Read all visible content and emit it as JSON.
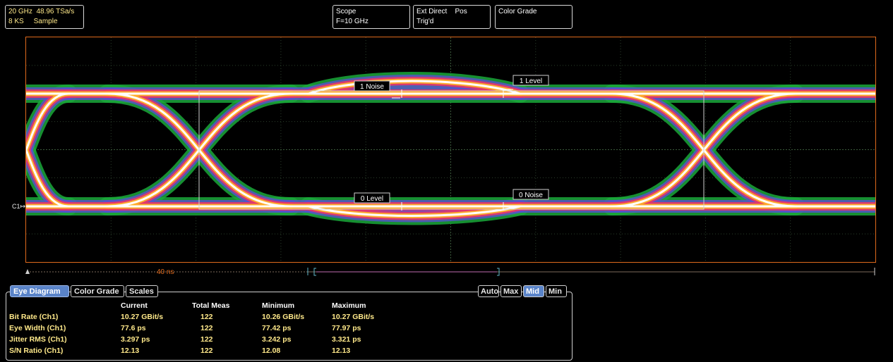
{
  "acquisition": {
    "bandwidth": "20 GHz",
    "sample_rate": "48.96 TSa/s",
    "record_length": "8 KS",
    "mode": "Sample"
  },
  "scope_box": {
    "title": "Scope",
    "filter": "F=10 GHz"
  },
  "trigger_box": {
    "source": "Ext Direct",
    "slope": "Pos",
    "status": "Trig'd"
  },
  "display_box": {
    "mode": "Color Grade"
  },
  "markers": {
    "noise1": "1 Noise",
    "level1": "1 Level",
    "level0": "0 Level",
    "noise0": "0 Noise"
  },
  "channel_label": "C1",
  "timebase": {
    "label": "40 ns"
  },
  "tabs": [
    {
      "label": "Eye Diagram",
      "active": true
    },
    {
      "label": "Color Grade",
      "active": false
    },
    {
      "label": "Scales",
      "active": false
    }
  ],
  "scale_modes": [
    {
      "label": "Auto",
      "active": false
    },
    {
      "label": "Max",
      "active": false
    },
    {
      "label": "Mid",
      "active": true
    },
    {
      "label": "Min",
      "active": false
    }
  ],
  "measurements": {
    "headers": [
      "",
      "Current",
      "Total Meas",
      "Minimum",
      "Maximum"
    ],
    "rows": [
      {
        "name": "Bit Rate (Ch1)",
        "current": "10.27 GBit/s",
        "total": "122",
        "min": "10.26 GBit/s",
        "max": "10.27 GBit/s"
      },
      {
        "name": "Eye Width (Ch1)",
        "current": "77.6 ps",
        "total": "122",
        "min": "77.42 ps",
        "max": "77.97 ps"
      },
      {
        "name": "Jitter RMS (Ch1)",
        "current": "3.297 ps",
        "total": "122",
        "min": "3.242 ps",
        "max": "3.321 ps"
      },
      {
        "name": "S/N Ratio (Ch1)",
        "current": "12.13",
        "total": "122",
        "min": "12.08",
        "max": "12.13"
      }
    ]
  },
  "colors": {
    "border": "#e06a1c",
    "grid": "#2a4a2a",
    "accent": "#5a84c9",
    "text_yellow": "#ffe98a"
  }
}
